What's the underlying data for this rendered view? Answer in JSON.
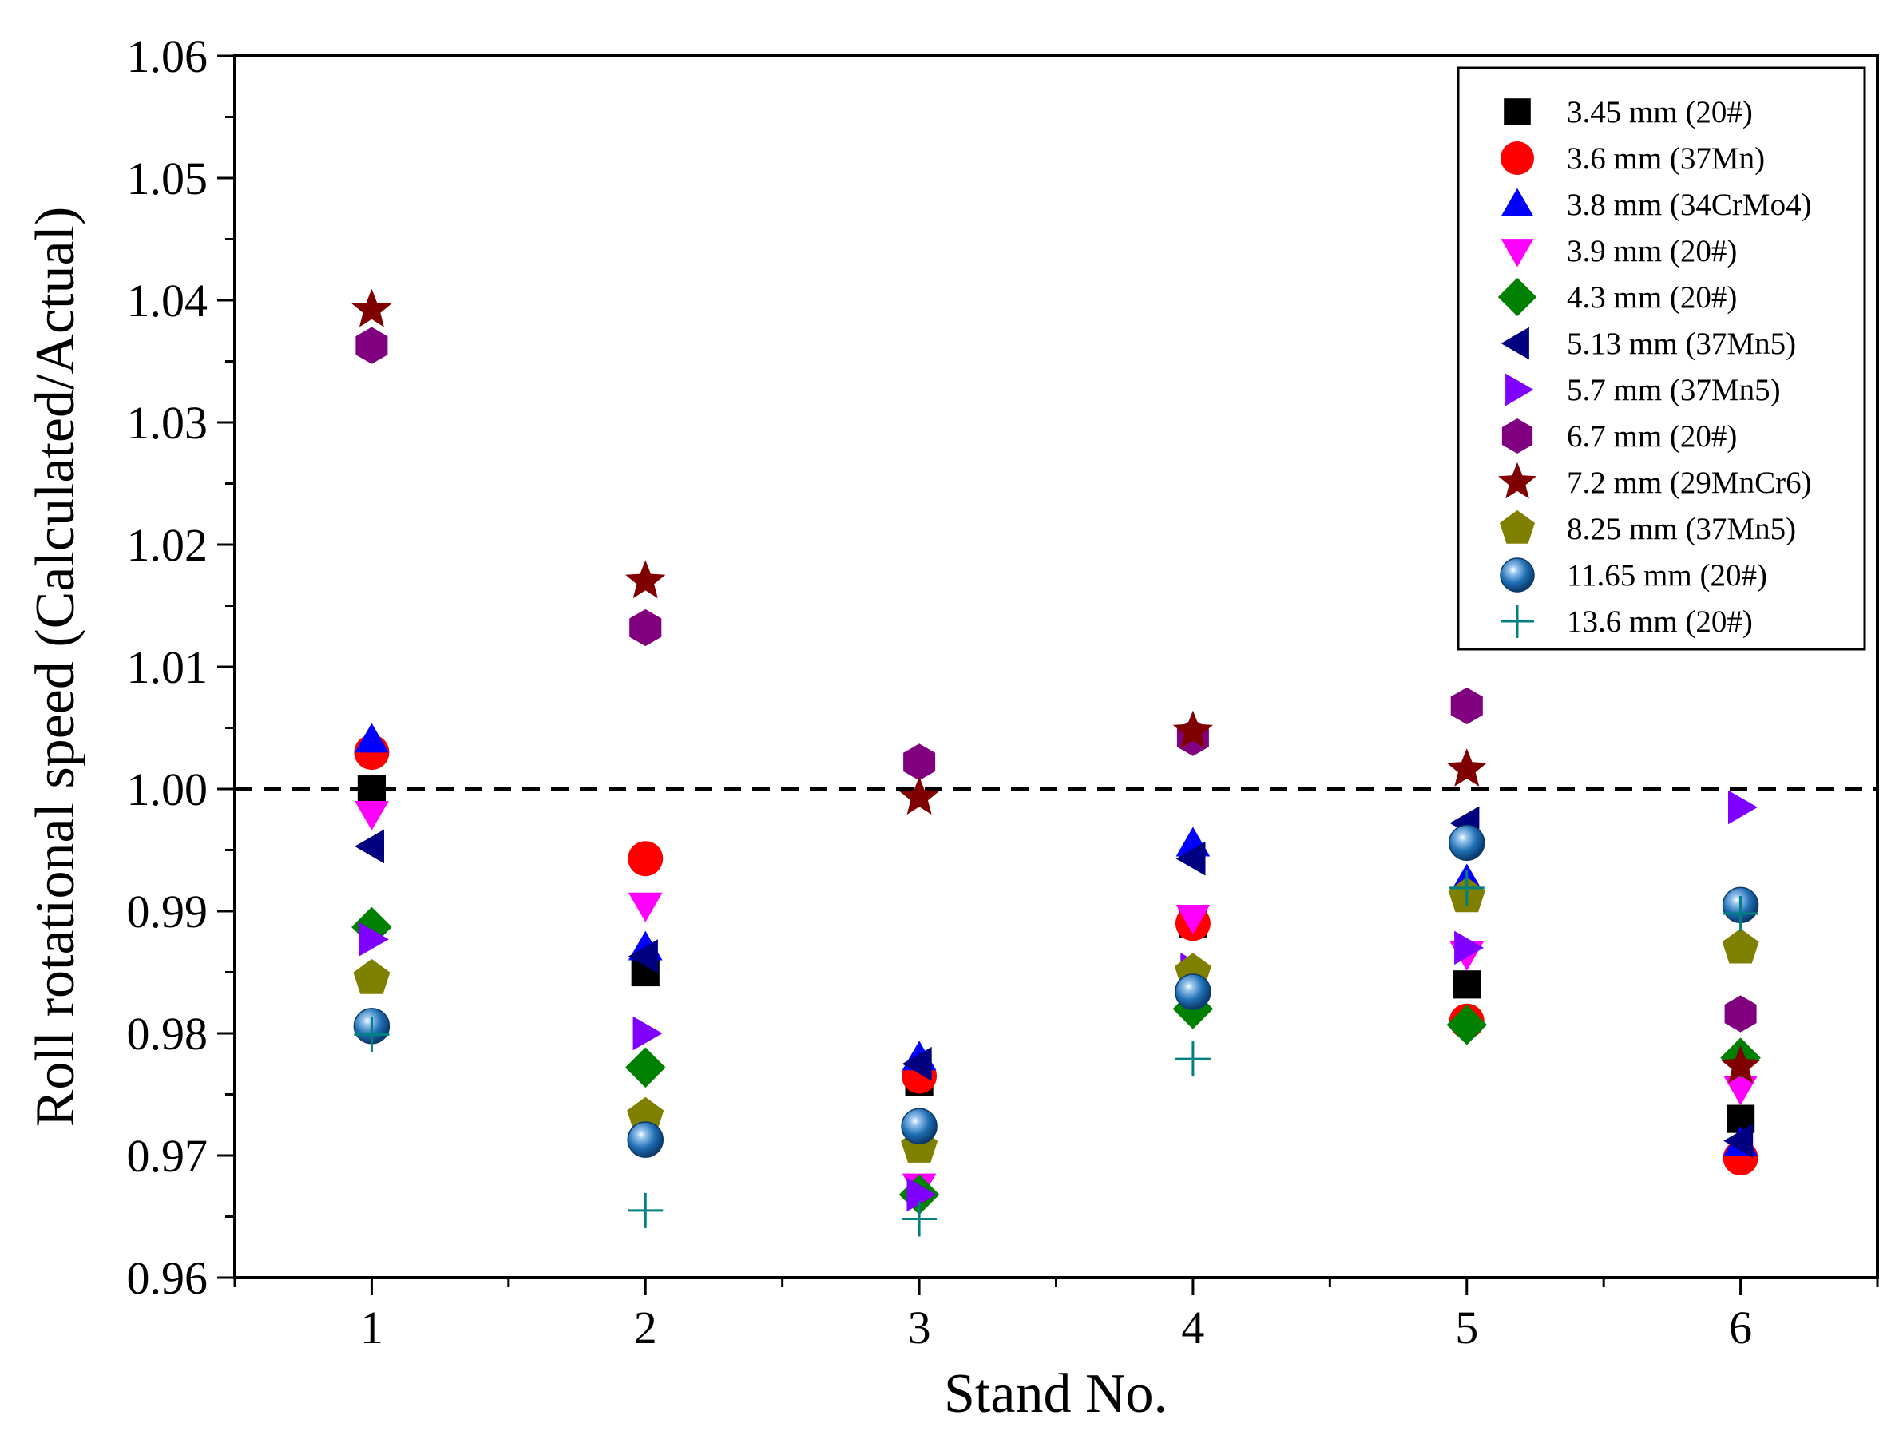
{
  "chart_data": {
    "type": "scatter",
    "title": "",
    "xlabel": "Stand No.",
    "ylabel": "Roll rotational speed (Calculated/Actual)",
    "xlim": [
      0.5,
      6.5
    ],
    "ylim": [
      0.96,
      1.06
    ],
    "xticks": [
      "1",
      "2",
      "3",
      "4",
      "5",
      "6"
    ],
    "yticks": [
      "0.96",
      "0.97",
      "0.98",
      "0.99",
      "1.00",
      "1.01",
      "1.02",
      "1.03",
      "1.04",
      "1.05",
      "1.06"
    ],
    "reference_line": {
      "y": 1.0,
      "style": "dashed"
    },
    "legend_position": "top-right",
    "x": [
      1,
      2,
      3,
      4,
      5,
      6
    ],
    "series": [
      {
        "name": "3.45 mm (20#)",
        "marker": "square",
        "color": "#000000",
        "values": [
          1.0,
          0.985,
          0.976,
          0.989,
          0.984,
          0.973
        ]
      },
      {
        "name": "3.6 mm (37Mn)",
        "marker": "circle",
        "color": "#ff0000",
        "values": [
          1.003,
          0.9943,
          0.9765,
          0.989,
          0.981,
          0.9698
        ]
      },
      {
        "name": "3.8 mm (34CrMo4)",
        "marker": "triangle-up",
        "color": "#0000ff",
        "values": [
          1.004,
          0.987,
          0.978,
          0.9955,
          0.9925,
          0.971
        ]
      },
      {
        "name": "3.9 mm (20#)",
        "marker": "triangle-down",
        "color": "#ff00ff",
        "values": [
          0.998,
          0.9905,
          0.9675,
          0.9895,
          0.9865,
          0.9755
        ]
      },
      {
        "name": "4.3 mm (20#)",
        "marker": "diamond",
        "color": "#008000",
        "values": [
          0.9887,
          0.9772,
          0.9668,
          0.982,
          0.9807,
          0.978
        ]
      },
      {
        "name": "5.13 mm (37Mn5)",
        "marker": "triangle-left",
        "color": "#000080",
        "values": [
          0.9953,
          0.9863,
          0.9775,
          0.9943,
          0.9972,
          0.9712
        ]
      },
      {
        "name": "5.7 mm (37Mn5)",
        "marker": "triangle-right",
        "color": "#8000ff",
        "values": [
          0.9877,
          0.98,
          0.9668,
          0.9852,
          0.987,
          0.9985
        ]
      },
      {
        "name": "6.7 mm (20#)",
        "marker": "hexagon",
        "color": "#800080",
        "values": [
          1.0363,
          1.0132,
          1.0022,
          1.0042,
          1.0068,
          0.9816
        ]
      },
      {
        "name": "7.2 mm (29MnCr6)",
        "marker": "star",
        "color": "#800000",
        "values": [
          1.0392,
          1.017,
          0.9993,
          1.0047,
          1.0016,
          0.9773
        ]
      },
      {
        "name": "8.25 mm (37Mn5)",
        "marker": "pentagon",
        "color": "#808000",
        "values": [
          0.9845,
          0.9732,
          0.9707,
          0.985,
          0.9912,
          0.987
        ]
      },
      {
        "name": "11.65 mm (20#)",
        "marker": "sphere",
        "color": "#1f6fb5",
        "values": [
          0.9806,
          0.9713,
          0.9724,
          0.9834,
          0.9956,
          0.9905
        ]
      },
      {
        "name": "13.6 mm (20#)",
        "marker": "plus",
        "color": "#008080",
        "values": [
          0.9799,
          0.9655,
          0.9648,
          0.9779,
          0.9919,
          0.9898
        ]
      }
    ]
  }
}
